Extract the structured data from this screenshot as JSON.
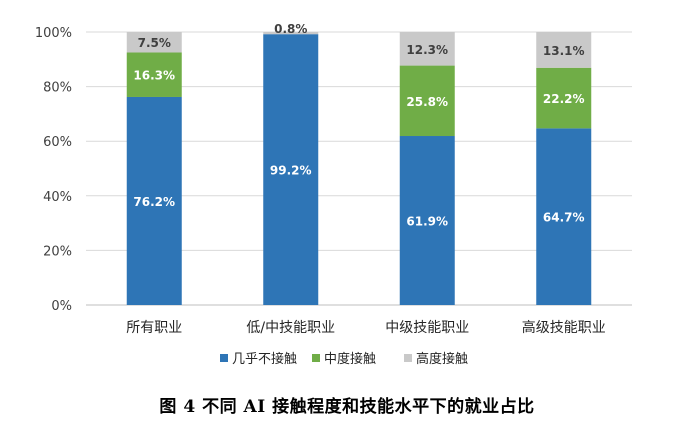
{
  "chart_data": {
    "type": "bar",
    "stacked": true,
    "title": "",
    "xlabel": "",
    "ylabel": "",
    "ylim": [
      0,
      100
    ],
    "y_ticks": [
      "0%",
      "20%",
      "40%",
      "60%",
      "80%",
      "100%"
    ],
    "categories": [
      "所有职业",
      "低/中技能职业",
      "中级技能职业",
      "高级技能职业"
    ],
    "series": [
      {
        "name": "几乎不接触",
        "color": "#2E75B6",
        "values": [
          76.2,
          99.2,
          61.9,
          64.7
        ],
        "labels": [
          "76.2%",
          "99.2%",
          "61.9%",
          "64.7%"
        ]
      },
      {
        "name": "中度接触",
        "color": "#70AD47",
        "values": [
          16.3,
          0,
          25.8,
          22.2
        ],
        "labels": [
          "16.3%",
          "",
          "25.8%",
          "22.2%"
        ]
      },
      {
        "name": "高度接触",
        "color": "#C9C9C9",
        "values": [
          7.5,
          0.8,
          12.3,
          13.1
        ],
        "labels": [
          "7.5%",
          "0.8%",
          "12.3%",
          "13.1%"
        ]
      }
    ],
    "legend_position": "bottom"
  },
  "caption": "图 4   不同 AI 接触程度和技能水平下的就业占比"
}
